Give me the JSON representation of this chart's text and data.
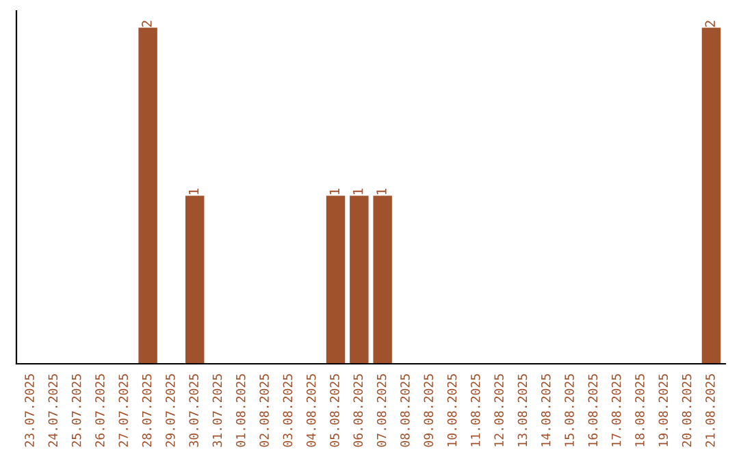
{
  "chart_data": {
    "type": "bar",
    "categories": [
      "23.07.2025",
      "24.07.2025",
      "25.07.2025",
      "26.07.2025",
      "27.07.2025",
      "28.07.2025",
      "29.07.2025",
      "30.07.2025",
      "31.07.2025",
      "01.08.2025",
      "02.08.2025",
      "03.08.2025",
      "04.08.2025",
      "05.08.2025",
      "06.08.2025",
      "07.08.2025",
      "08.08.2025",
      "09.08.2025",
      "10.08.2025",
      "11.08.2025",
      "12.08.2025",
      "13.08.2025",
      "14.08.2025",
      "15.08.2025",
      "16.08.2025",
      "17.08.2025",
      "18.08.2025",
      "19.08.2025",
      "20.08.2025",
      "21.08.2025"
    ],
    "values": [
      0,
      0,
      0,
      0,
      0,
      2,
      0,
      1,
      0,
      0,
      0,
      0,
      0,
      1,
      1,
      1,
      0,
      0,
      0,
      0,
      0,
      0,
      0,
      0,
      0,
      0,
      0,
      0,
      0,
      2
    ],
    "value_labels": [
      null,
      null,
      null,
      null,
      null,
      "2",
      null,
      "1",
      null,
      null,
      null,
      null,
      null,
      "1",
      "1",
      "1",
      null,
      null,
      null,
      null,
      null,
      null,
      null,
      null,
      null,
      null,
      null,
      null,
      null,
      "2"
    ],
    "color": "#a0522d",
    "tick_labels": "x",
    "grid": false,
    "legend": false
  }
}
